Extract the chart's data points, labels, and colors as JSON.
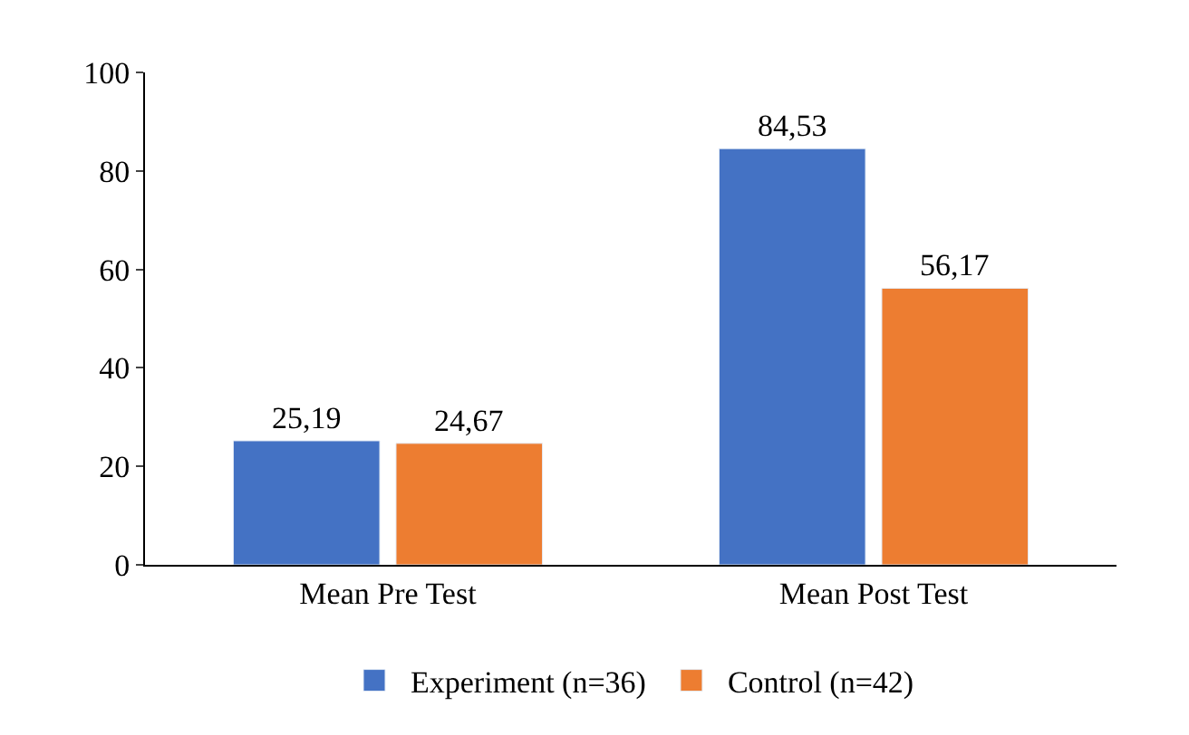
{
  "chart_data": {
    "type": "bar",
    "categories": [
      "Mean Pre Test",
      "Mean Post Test"
    ],
    "series": [
      {
        "name": "Experiment (n=36)",
        "color": "#4472c4",
        "values": [
          25.19,
          84.53
        ],
        "value_labels": [
          "25,19",
          "84,53"
        ]
      },
      {
        "name": "Control (n=42)",
        "color": "#ed7d31",
        "values": [
          24.67,
          56.17
        ],
        "value_labels": [
          "24,67",
          "56,17"
        ]
      }
    ],
    "ylim": [
      0,
      100
    ],
    "yticks": [
      0,
      20,
      40,
      60,
      80,
      100
    ],
    "legend": "bottom"
  }
}
